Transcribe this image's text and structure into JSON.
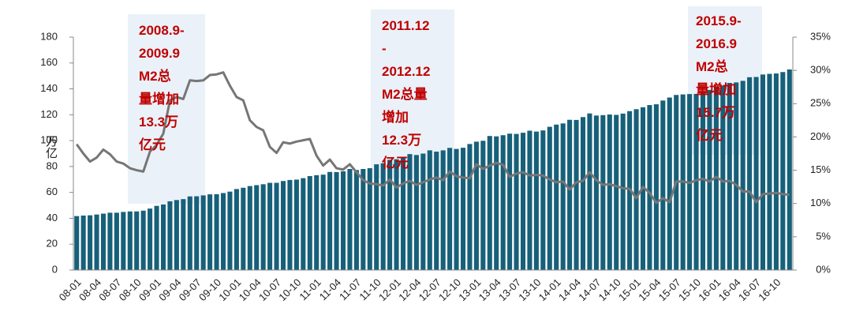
{
  "chart_data": {
    "type": "bar-line",
    "y_label": "万亿",
    "categories": [
      "08-01",
      null,
      null,
      "08-04",
      null,
      null,
      "08-07",
      null,
      null,
      "08-10",
      null,
      null,
      "09-01",
      null,
      null,
      "09-04",
      null,
      null,
      "09-07",
      null,
      null,
      "09-10",
      null,
      null,
      "10-01",
      null,
      null,
      "10-04",
      null,
      null,
      "10-07",
      null,
      null,
      "10-10",
      null,
      null,
      "11-01",
      null,
      null,
      "11-04",
      null,
      null,
      "11-07",
      null,
      null,
      "11-10",
      null,
      null,
      "12-01",
      null,
      null,
      "12-04",
      null,
      null,
      "12-07",
      null,
      null,
      "12-10",
      null,
      null,
      "13-01",
      null,
      null,
      "13-04",
      null,
      null,
      "13-07",
      null,
      null,
      "13-10",
      null,
      null,
      "14-01",
      null,
      null,
      "14-04",
      null,
      null,
      "14-07",
      null,
      null,
      "14-10",
      null,
      null,
      "15-01",
      null,
      null,
      "15-04",
      null,
      null,
      "15-07",
      null,
      null,
      "15-10",
      null,
      null,
      "16-01",
      null,
      null,
      "16-04",
      null,
      null,
      "16-07",
      null,
      null,
      "16-10",
      null,
      null
    ],
    "series": [
      {
        "type": "bar",
        "color": "#17607a",
        "values": [
          41.7,
          42.1,
          42.3,
          42.9,
          43.6,
          44.3,
          44.3,
          44.9,
          45.3,
          45.3,
          45.9,
          47.5,
          49.6,
          50.7,
          53.1,
          54.1,
          54.8,
          56.9,
          57.0,
          57.7,
          58.5,
          58.6,
          59.5,
          60.6,
          62.6,
          63.6,
          64.9,
          65.6,
          66.3,
          67.4,
          67.4,
          68.8,
          69.6,
          69.9,
          71.0,
          72.6,
          73.3,
          73.7,
          75.8,
          75.7,
          76.3,
          78.1,
          77.3,
          78.1,
          78.7,
          81.7,
          82.5,
          85.2,
          85.6,
          86.7,
          89.6,
          88.9,
          90.0,
          92.5,
          91.5,
          92.5,
          94.4,
          93.6,
          94.5,
          97.4,
          99.2,
          99.9,
          103.6,
          103.3,
          104.2,
          105.4,
          105.2,
          106.1,
          107.7,
          107.0,
          107.9,
          110.7,
          112.4,
          113.3,
          116.1,
          116.0,
          118.2,
          121.0,
          119.4,
          119.7,
          120.2,
          119.9,
          120.9,
          122.8,
          124.3,
          125.8,
          127.5,
          128.1,
          131.0,
          133.3,
          135.3,
          135.7,
          136.0,
          136.1,
          137.4,
          139.2,
          141.6,
          142.5,
          144.6,
          145.0,
          146.2,
          149.0,
          149.2,
          151.1,
          151.6,
          151.9,
          153.0,
          155.0
        ]
      },
      {
        "type": "line",
        "axis": "y2",
        "color": "#767676",
        "values": [
          18.9,
          17.5,
          16.3,
          16.9,
          18.1,
          17.4,
          16.3,
          16.0,
          15.3,
          15.0,
          14.8,
          17.8,
          18.8,
          20.5,
          25.5,
          26.0,
          25.7,
          28.5,
          28.4,
          28.5,
          29.3,
          29.4,
          29.7,
          27.7,
          26.0,
          25.5,
          22.5,
          21.5,
          21.0,
          18.5,
          17.6,
          19.2,
          19.0,
          19.3,
          19.5,
          19.7,
          17.2,
          15.7,
          16.6,
          15.3,
          15.1,
          15.9,
          14.7,
          13.5,
          13.0,
          12.9,
          12.7,
          13.6,
          12.4,
          13.0,
          13.4,
          12.8,
          13.2,
          13.6,
          13.9,
          13.5,
          14.8,
          14.1,
          13.9,
          13.8,
          15.9,
          15.2,
          15.7,
          16.1,
          15.8,
          14.0,
          14.5,
          14.7,
          14.2,
          14.3,
          14.2,
          13.6,
          13.2,
          13.3,
          12.1,
          13.2,
          13.4,
          14.7,
          13.5,
          12.8,
          12.9,
          12.6,
          12.3,
          12.2,
          10.8,
          12.5,
          11.6,
          10.1,
          10.8,
          10.2,
          13.3,
          13.3,
          13.1,
          13.5,
          13.7,
          13.3,
          14.0,
          13.3,
          13.4,
          12.8,
          11.8,
          11.8,
          10.2,
          11.4,
          11.5,
          11.6,
          11.4,
          11.3
        ]
      }
    ],
    "ylim": [
      0,
      180
    ],
    "yticks": [
      0,
      20,
      40,
      60,
      80,
      100,
      120,
      140,
      160,
      180
    ],
    "y2lim": [
      0,
      35
    ],
    "y2ticks": [
      {
        "value": 0,
        "label": "0%"
      },
      {
        "value": 5,
        "label": "5%"
      },
      {
        "value": 10,
        "label": "10%"
      },
      {
        "value": 15,
        "label": "15%"
      },
      {
        "value": 20,
        "label": "20%"
      },
      {
        "value": 25,
        "label": "25%"
      },
      {
        "value": 30,
        "label": "30%"
      },
      {
        "value": 35,
        "label": "35%"
      }
    ],
    "annotations": [
      {
        "lines": [
          "2008.9-",
          "2009.9",
          "M2总",
          "量增加",
          "13.3万",
          "亿元"
        ]
      },
      {
        "lines": [
          "2011.12",
          "-",
          "2012.12",
          "M2总量",
          "增加",
          "12.3万",
          "亿元"
        ]
      },
      {
        "lines": [
          "2015.9-",
          "2016.9",
          "M2总",
          "量增加",
          "15.7万",
          "亿元"
        ]
      }
    ]
  }
}
